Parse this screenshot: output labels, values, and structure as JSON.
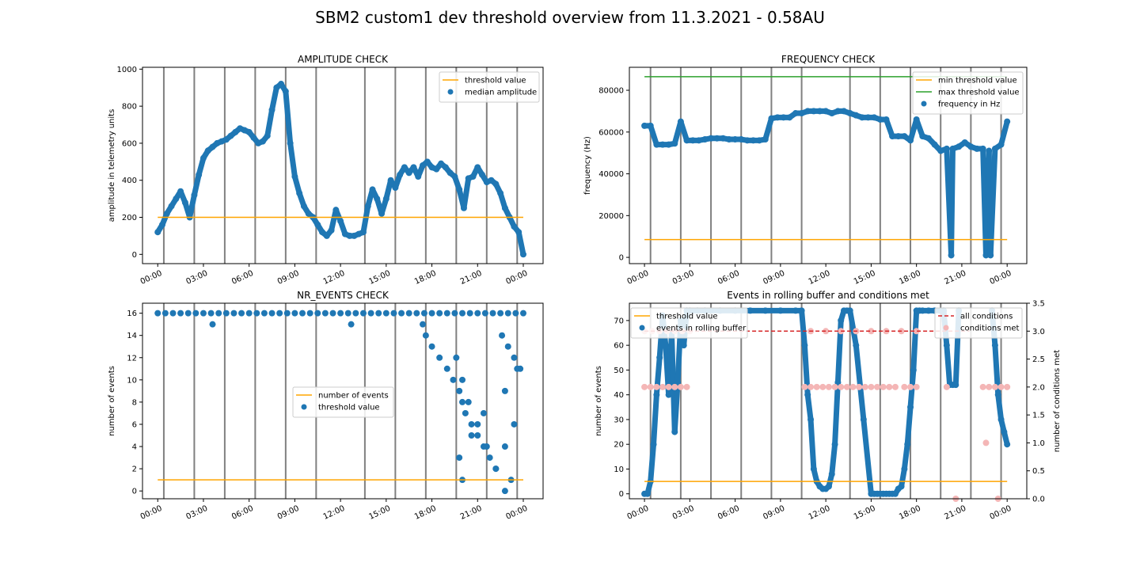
{
  "figure": {
    "title": "SBM2 custom1 dev threshold overview from 11.3.2021 - 0.58AU"
  },
  "colors": {
    "series": "#1f77b4",
    "threshold": "#ffa500",
    "max_threshold": "#2ca02c",
    "all_conditions": "#d62728",
    "conditions_met": "#f4b6b6",
    "vlines": "#808080"
  },
  "chart_data": [
    {
      "type": "scatter",
      "title": "AMPLITUDE CHECK",
      "xlabel": "",
      "ylabel": "amplitude in telemetry units",
      "xlim_hours": [
        -1,
        25.3
      ],
      "ylim": [
        -50,
        1010
      ],
      "xticks": [
        "00:00",
        "03:00",
        "06:00",
        "09:00",
        "12:00",
        "15:00",
        "18:00",
        "21:00",
        "00:00"
      ],
      "yticks": [
        0,
        200,
        400,
        600,
        800,
        1000
      ],
      "vlines_hours": [
        0.4,
        2.4,
        4.4,
        6.4,
        8.4,
        10.4,
        13.6,
        15.6,
        17.6,
        19.6,
        21.6,
        23.6
      ],
      "lines": [
        {
          "name": "threshold value",
          "y": 200,
          "x0": 0,
          "x1": 24,
          "color": "threshold"
        }
      ],
      "series": [
        {
          "name": "median amplitude",
          "x": [
            0,
            0.3,
            0.6,
            0.9,
            1.2,
            1.5,
            1.8,
            2.1,
            2.4,
            2.7,
            3.0,
            3.3,
            3.6,
            3.9,
            4.2,
            4.5,
            4.8,
            5.1,
            5.4,
            5.7,
            6.0,
            6.3,
            6.6,
            6.9,
            7.2,
            7.5,
            7.8,
            8.1,
            8.4,
            8.7,
            9.0,
            9.3,
            9.6,
            9.9,
            10.2,
            10.5,
            10.8,
            11.1,
            11.4,
            11.7,
            12.0,
            12.3,
            12.6,
            12.9,
            13.2,
            13.5,
            13.8,
            14.1,
            14.4,
            14.7,
            15.0,
            15.3,
            15.6,
            15.9,
            16.2,
            16.5,
            16.8,
            17.1,
            17.4,
            17.7,
            18.0,
            18.3,
            18.6,
            18.9,
            19.2,
            19.5,
            19.8,
            20.1,
            20.4,
            20.7,
            21.0,
            21.3,
            21.6,
            21.9,
            22.2,
            22.5,
            22.8,
            23.1,
            23.4,
            23.7,
            24.0
          ],
          "y": [
            120,
            160,
            220,
            260,
            300,
            340,
            280,
            200,
            320,
            430,
            520,
            560,
            580,
            600,
            610,
            620,
            640,
            660,
            680,
            670,
            660,
            630,
            600,
            610,
            640,
            780,
            900,
            920,
            880,
            600,
            420,
            330,
            260,
            220,
            200,
            160,
            120,
            100,
            130,
            240,
            180,
            110,
            100,
            100,
            110,
            120,
            260,
            350,
            300,
            220,
            300,
            400,
            360,
            430,
            470,
            440,
            470,
            420,
            480,
            500,
            470,
            460,
            490,
            470,
            440,
            420,
            350,
            250,
            410,
            420,
            470,
            430,
            390,
            400,
            380,
            330,
            250,
            200,
            150,
            120,
            0
          ]
        }
      ]
    },
    {
      "type": "scatter",
      "title": "FREQUENCY CHECK",
      "xlabel": "",
      "ylabel": "frequency (Hz)",
      "xlim_hours": [
        -1,
        25.3
      ],
      "ylim": [
        -3000,
        91000
      ],
      "xticks": [
        "00:00",
        "03:00",
        "06:00",
        "09:00",
        "12:00",
        "15:00",
        "18:00",
        "21:00",
        "00:00"
      ],
      "yticks": [
        0,
        20000,
        40000,
        60000,
        80000
      ],
      "vlines_hours": [
        0.4,
        2.4,
        4.4,
        6.4,
        8.4,
        10.4,
        13.6,
        15.6,
        17.6,
        19.6,
        21.6,
        23.6
      ],
      "lines": [
        {
          "name": "min threshold value",
          "y": 8500,
          "x0": 0,
          "x1": 24,
          "color": "threshold"
        },
        {
          "name": "max threshold value",
          "y": 86500,
          "x0": 0,
          "x1": 24,
          "color": "max_threshold"
        }
      ],
      "series": [
        {
          "name": "frequency in Hz",
          "x": [
            0,
            0.4,
            0.8,
            1.2,
            1.6,
            2.0,
            2.4,
            2.8,
            3.2,
            3.6,
            4.0,
            4.4,
            4.8,
            5.2,
            5.6,
            6.0,
            6.4,
            6.8,
            7.2,
            7.6,
            8.0,
            8.4,
            8.8,
            9.2,
            9.6,
            10.0,
            10.4,
            10.8,
            11.2,
            11.6,
            12.0,
            12.4,
            12.8,
            13.2,
            13.6,
            14.0,
            14.4,
            14.8,
            15.2,
            15.6,
            16.0,
            16.4,
            16.8,
            17.2,
            17.6,
            18.0,
            18.4,
            18.8,
            19.2,
            19.6,
            20.0,
            20.4,
            20.8,
            21.2,
            21.6,
            22.0,
            22.4,
            22.8,
            23.2,
            23.6,
            24.0,
            20.3,
            22.6,
            22.9
          ],
          "y": [
            63000,
            63000,
            54000,
            54000,
            54000,
            54500,
            65000,
            56000,
            56000,
            56000,
            56500,
            57000,
            57000,
            57000,
            56500,
            56500,
            56500,
            56000,
            56000,
            56000,
            56500,
            66500,
            67000,
            67000,
            67000,
            69000,
            69000,
            70000,
            70000,
            70000,
            70000,
            69000,
            70000,
            70000,
            69000,
            68000,
            67000,
            67000,
            67000,
            66000,
            66000,
            58000,
            58000,
            58000,
            56000,
            66000,
            58000,
            57000,
            54000,
            51000,
            52000,
            52000,
            53000,
            55000,
            53000,
            52000,
            52000,
            51000,
            52000,
            54000,
            65000,
            1000,
            1000,
            1000
          ]
        }
      ]
    },
    {
      "type": "scatter",
      "title": "NR_EVENTS CHECK",
      "xlabel": "",
      "ylabel": "number of events",
      "xlim_hours": [
        -1,
        25.3
      ],
      "ylim": [
        -0.7,
        16.9
      ],
      "xticks": [
        "00:00",
        "03:00",
        "06:00",
        "09:00",
        "12:00",
        "15:00",
        "18:00",
        "21:00",
        "00:00"
      ],
      "yticks": [
        0,
        2,
        4,
        6,
        8,
        10,
        12,
        14,
        16
      ],
      "vlines_hours": [
        0.4,
        2.4,
        4.4,
        6.4,
        8.4,
        10.4,
        13.6,
        15.6,
        17.6,
        19.6,
        21.6,
        23.6
      ],
      "lines": [
        {
          "name": "number of events",
          "y": 1,
          "x0": 0,
          "x1": 24,
          "color": "threshold"
        }
      ],
      "legend_labels_in_order": [
        "number of events",
        "threshold value"
      ],
      "series": [
        {
          "name": "threshold value",
          "x": [
            0,
            0.5,
            1,
            1.5,
            2,
            2.5,
            3,
            3.5,
            4,
            4.5,
            5,
            5.5,
            6,
            6.5,
            7,
            7.5,
            8,
            8.5,
            9,
            9.5,
            10,
            10.5,
            11,
            11.5,
            12,
            12.5,
            13,
            13.5,
            14,
            14.5,
            15,
            15.5,
            16,
            16.5,
            17,
            17.5,
            18,
            18.5,
            19,
            19.5,
            20,
            20.5,
            21,
            21.5,
            22,
            22.5,
            23,
            23.5,
            24,
            3.6,
            12.7,
            17.4,
            17.6,
            18.0,
            18.5,
            19.0,
            19.4,
            19.8,
            20.0,
            20.2,
            20.6,
            21.0,
            21.4,
            21.8,
            22.2,
            22.6,
            23.0,
            23.4,
            23.8,
            19.6,
            20.0,
            20.4,
            21.0,
            21.6,
            22.2,
            22.8,
            23.4,
            19.8,
            20.6,
            21.4,
            22.8,
            23.6,
            20.0,
            22.8,
            23.2
          ],
          "y": [
            16,
            16,
            16,
            16,
            16,
            16,
            16,
            16,
            16,
            16,
            16,
            16,
            16,
            16,
            16,
            16,
            16,
            16,
            16,
            16,
            16,
            16,
            16,
            16,
            16,
            16,
            16,
            16,
            16,
            16,
            16,
            16,
            16,
            16,
            16,
            16,
            16,
            16,
            16,
            16,
            16,
            16,
            16,
            16,
            16,
            16,
            16,
            16,
            16,
            15,
            15,
            15,
            14,
            13,
            12,
            11,
            10,
            9,
            8,
            7,
            6,
            5,
            4,
            3,
            2,
            14,
            13,
            12,
            11,
            12,
            10,
            8,
            6,
            4,
            2,
            4,
            6,
            3,
            5,
            7,
            9,
            11,
            1,
            0,
            1
          ]
        }
      ]
    },
    {
      "type": "scatter",
      "title": "Events in rolling buffer and conditions met",
      "xlabel": "",
      "ylabel": "number of events",
      "ylabel_right": "number of conditions met",
      "xlim_hours": [
        -1,
        25.3
      ],
      "ylim": [
        -2,
        77
      ],
      "ylim_right": [
        0,
        3.5
      ],
      "xticks": [
        "00:00",
        "03:00",
        "06:00",
        "09:00",
        "12:00",
        "15:00",
        "18:00",
        "21:00",
        "00:00"
      ],
      "yticks": [
        0,
        10,
        20,
        30,
        40,
        50,
        60,
        70
      ],
      "yticks_right": [
        "0.0",
        "0.5",
        "1.0",
        "1.5",
        "2.0",
        "2.5",
        "3.0",
        "3.5"
      ],
      "vlines_hours": [
        0.4,
        2.4,
        4.4,
        6.4,
        8.4,
        10.4,
        13.6,
        15.6,
        17.6,
        19.6,
        21.6,
        23.6
      ],
      "lines": [
        {
          "name": "threshold value",
          "y": 5,
          "x0": 0,
          "x1": 24,
          "color": "threshold"
        },
        {
          "name": "all conditions",
          "y_right": 3.0,
          "x0": 0,
          "x1": 21.5,
          "color": "all_conditions",
          "dashed": true
        }
      ],
      "series": [
        {
          "name": "events in rolling buffer",
          "x": [
            0,
            0.2,
            0.4,
            0.6,
            0.8,
            1.0,
            1.2,
            1.4,
            1.6,
            1.8,
            2.0,
            2.2,
            2.4,
            2.6,
            2.8,
            3.0,
            3.5,
            4.0,
            5.0,
            6.0,
            7.0,
            8.0,
            9.0,
            10.0,
            10.4,
            10.6,
            10.8,
            11.0,
            11.2,
            11.4,
            11.6,
            11.8,
            12.0,
            12.2,
            12.4,
            12.6,
            12.8,
            13.0,
            13.2,
            13.4,
            13.6,
            14.0,
            14.5,
            15.0,
            15.2,
            15.4,
            15.6,
            15.8,
            16.0,
            16.2,
            16.4,
            16.6,
            16.8,
            17.0,
            17.2,
            17.4,
            17.6,
            17.8,
            18.0,
            18.2,
            18.4,
            18.8,
            19.2,
            19.6,
            19.8,
            20.0,
            20.2,
            20.4,
            20.6,
            20.8,
            23.0,
            23.2,
            23.4,
            23.6,
            23.8,
            24.0
          ],
          "y": [
            0,
            0,
            5,
            20,
            40,
            55,
            72,
            60,
            40,
            65,
            25,
            45,
            70,
            60,
            74,
            74,
            74,
            74,
            74,
            74,
            74,
            74,
            74,
            74,
            74,
            60,
            40,
            30,
            10,
            5,
            3,
            2,
            2,
            3,
            8,
            20,
            45,
            70,
            74,
            74,
            74,
            60,
            30,
            0,
            0,
            0,
            0,
            0,
            0,
            0,
            0,
            0,
            2,
            3,
            10,
            20,
            35,
            50,
            74,
            74,
            74,
            74,
            74,
            74,
            74,
            60,
            44,
            44,
            44,
            74,
            74,
            60,
            40,
            30,
            25,
            20
          ]
        },
        {
          "name": "conditions met",
          "axis": "right",
          "x": [
            0,
            0.4,
            0.8,
            1.2,
            1.6,
            2.0,
            2.4,
            2.8,
            10.6,
            11.0,
            11.4,
            11.8,
            12.2,
            12.6,
            13.0,
            13.4,
            13.8,
            14.2,
            14.6,
            15.0,
            15.4,
            15.8,
            16.2,
            16.6,
            17.2,
            17.6,
            18.0,
            20.0,
            22.4,
            22.8,
            23.2,
            23.6,
            24.0,
            0,
            0.5,
            1.0,
            1.5,
            2.0,
            2.5,
            3.0,
            11.0,
            12.0,
            13.0,
            14.0,
            15.0,
            16.0,
            17.0,
            18.0,
            20.6,
            22.6,
            23.4
          ],
          "y": [
            2,
            2,
            2,
            2,
            2,
            2,
            2,
            2,
            2,
            2,
            2,
            2,
            2,
            2,
            2,
            2,
            2,
            2,
            2,
            2,
            2,
            2,
            2,
            2,
            2,
            2,
            2,
            2,
            2,
            2,
            2,
            2,
            2,
            3,
            3,
            3,
            3,
            3,
            3,
            3,
            3,
            3,
            3,
            3,
            3,
            3,
            3,
            3,
            0,
            1,
            0
          ]
        }
      ]
    }
  ]
}
